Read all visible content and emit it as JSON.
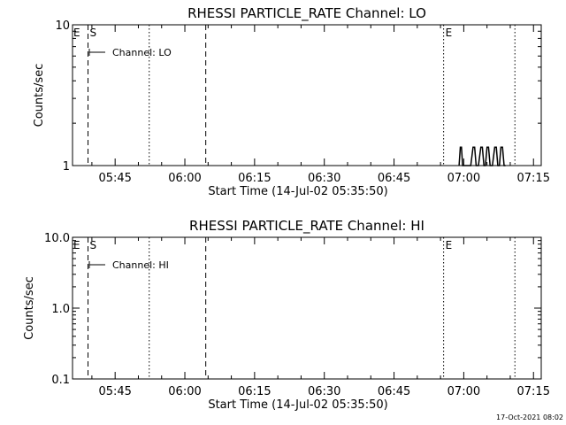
{
  "footer_timestamp": "17-Oct-2021 08:02",
  "chart_data": [
    {
      "type": "line",
      "title": "RHESSI PARTICLE_RATE Channel: LO",
      "xlabel": "Start Time (14-Jul-02 05:35:50)",
      "ylabel": "Counts/sec",
      "y_scale": "log",
      "ylim": [
        1,
        10
      ],
      "y_ticks": [
        {
          "value": 1,
          "label": "1"
        },
        {
          "value": 10,
          "label": "10"
        }
      ],
      "xlim": [
        "05:35:50",
        "07:16:40"
      ],
      "x_ticks": [
        "05:45",
        "06:00",
        "06:15",
        "06:30",
        "06:45",
        "07:00",
        "07:15"
      ],
      "legend": "Channel: LO",
      "legend_position": "top-left",
      "markers": [
        {
          "time": "05:39:10",
          "style": "dashed",
          "label": "S"
        },
        {
          "time": "05:52:20",
          "style": "dotted",
          "label": ""
        },
        {
          "time": "06:04:30",
          "style": "dashed",
          "label": ""
        },
        {
          "time": "06:55:40",
          "style": "dotted",
          "label": "E"
        },
        {
          "time": "07:11:00",
          "style": "dotted",
          "label": ""
        }
      ],
      "corner_label": "E",
      "series": [
        {
          "x": [
            "06:59:00",
            "06:59:15",
            "06:59:30",
            "06:59:45",
            "07:00:00",
            "07:01:30",
            "07:02:00",
            "07:02:20",
            "07:02:40",
            "07:03:10",
            "07:03:40",
            "07:04:00",
            "07:04:20",
            "07:04:40",
            "07:05:00",
            "07:05:20",
            "07:05:40",
            "07:06:10",
            "07:06:40",
            "07:07:00",
            "07:07:20",
            "07:07:40",
            "07:08:00",
            "07:08:20",
            "07:08:40",
            "07:09:00"
          ],
          "y": [
            1,
            1.35,
            1.35,
            1,
            1,
            1,
            1.35,
            1.35,
            1,
            1,
            1.35,
            1.35,
            1,
            1,
            1.35,
            1.35,
            1,
            1,
            1.35,
            1.35,
            1,
            1,
            1.35,
            1.35,
            1,
            1
          ]
        }
      ]
    },
    {
      "type": "line",
      "title": "RHESSI PARTICLE_RATE Channel: HI",
      "xlabel": "Start Time (14-Jul-02 05:35:50)",
      "ylabel": "Counts/sec",
      "y_scale": "log",
      "ylim": [
        0.1,
        10
      ],
      "y_ticks": [
        {
          "value": 0.1,
          "label": "0.1"
        },
        {
          "value": 1,
          "label": "1.0"
        },
        {
          "value": 10,
          "label": "10.0"
        }
      ],
      "xlim": [
        "05:35:50",
        "07:16:40"
      ],
      "x_ticks": [
        "05:45",
        "06:00",
        "06:15",
        "06:30",
        "06:45",
        "07:00",
        "07:15"
      ],
      "legend": "Channel: HI",
      "legend_position": "top-left",
      "markers": [
        {
          "time": "05:39:10",
          "style": "dashed",
          "label": "S"
        },
        {
          "time": "05:52:20",
          "style": "dotted",
          "label": ""
        },
        {
          "time": "06:04:30",
          "style": "dashed",
          "label": ""
        },
        {
          "time": "06:55:40",
          "style": "dotted",
          "label": "E"
        },
        {
          "time": "07:11:00",
          "style": "dotted",
          "label": ""
        }
      ],
      "corner_label": "E",
      "series": []
    }
  ]
}
